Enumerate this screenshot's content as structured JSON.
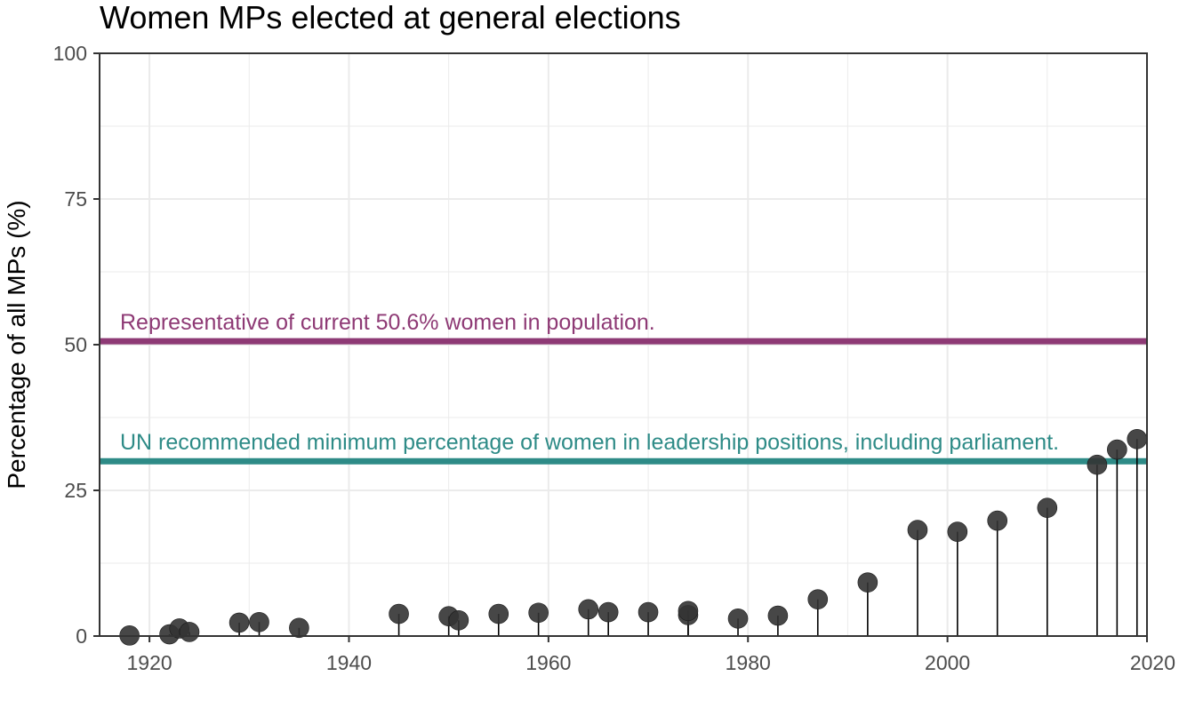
{
  "chart_data": {
    "type": "scatter",
    "style": "lollipop",
    "title": "Women MPs elected at general elections",
    "xlabel": "",
    "ylabel": "Percentage of all MPs (%)",
    "xlim": [
      1915,
      2020
    ],
    "ylim": [
      0,
      100
    ],
    "x_ticks": [
      1920,
      1940,
      1960,
      1980,
      2000,
      2020
    ],
    "y_ticks": [
      0,
      25,
      50,
      75,
      100
    ],
    "grid": true,
    "points": [
      {
        "x": 1918,
        "y": 0.1
      },
      {
        "x": 1922,
        "y": 0.3
      },
      {
        "x": 1923,
        "y": 1.3
      },
      {
        "x": 1924,
        "y": 0.7
      },
      {
        "x": 1929,
        "y": 2.3
      },
      {
        "x": 1931,
        "y": 2.4
      },
      {
        "x": 1935,
        "y": 1.4
      },
      {
        "x": 1945,
        "y": 3.8
      },
      {
        "x": 1950,
        "y": 3.4
      },
      {
        "x": 1951,
        "y": 2.7
      },
      {
        "x": 1955,
        "y": 3.8
      },
      {
        "x": 1959,
        "y": 4.0
      },
      {
        "x": 1964,
        "y": 4.6
      },
      {
        "x": 1966,
        "y": 4.1
      },
      {
        "x": 1970,
        "y": 4.1
      },
      {
        "x": 1974,
        "y": 3.6
      },
      {
        "x": 1974,
        "y": 4.3
      },
      {
        "x": 1979,
        "y": 3.0
      },
      {
        "x": 1983,
        "y": 3.5
      },
      {
        "x": 1987,
        "y": 6.3
      },
      {
        "x": 1992,
        "y": 9.2
      },
      {
        "x": 1997,
        "y": 18.2
      },
      {
        "x": 2001,
        "y": 17.9
      },
      {
        "x": 2005,
        "y": 19.8
      },
      {
        "x": 2010,
        "y": 22.0
      },
      {
        "x": 2015,
        "y": 29.4
      },
      {
        "x": 2017,
        "y": 32.0
      },
      {
        "x": 2019,
        "y": 33.8
      }
    ],
    "reference_lines": [
      {
        "y": 50.6,
        "label": "Representative of current 50.6% women in population.",
        "color": "#8e3a75"
      },
      {
        "y": 30,
        "label": "UN recommended minimum percentage of women in leadership positions, including parliament.",
        "color": "#2e8b87"
      }
    ],
    "colors": {
      "point": "#333333",
      "stem": "#000000",
      "grid": "#ebebeb",
      "axis": "#333333"
    }
  }
}
